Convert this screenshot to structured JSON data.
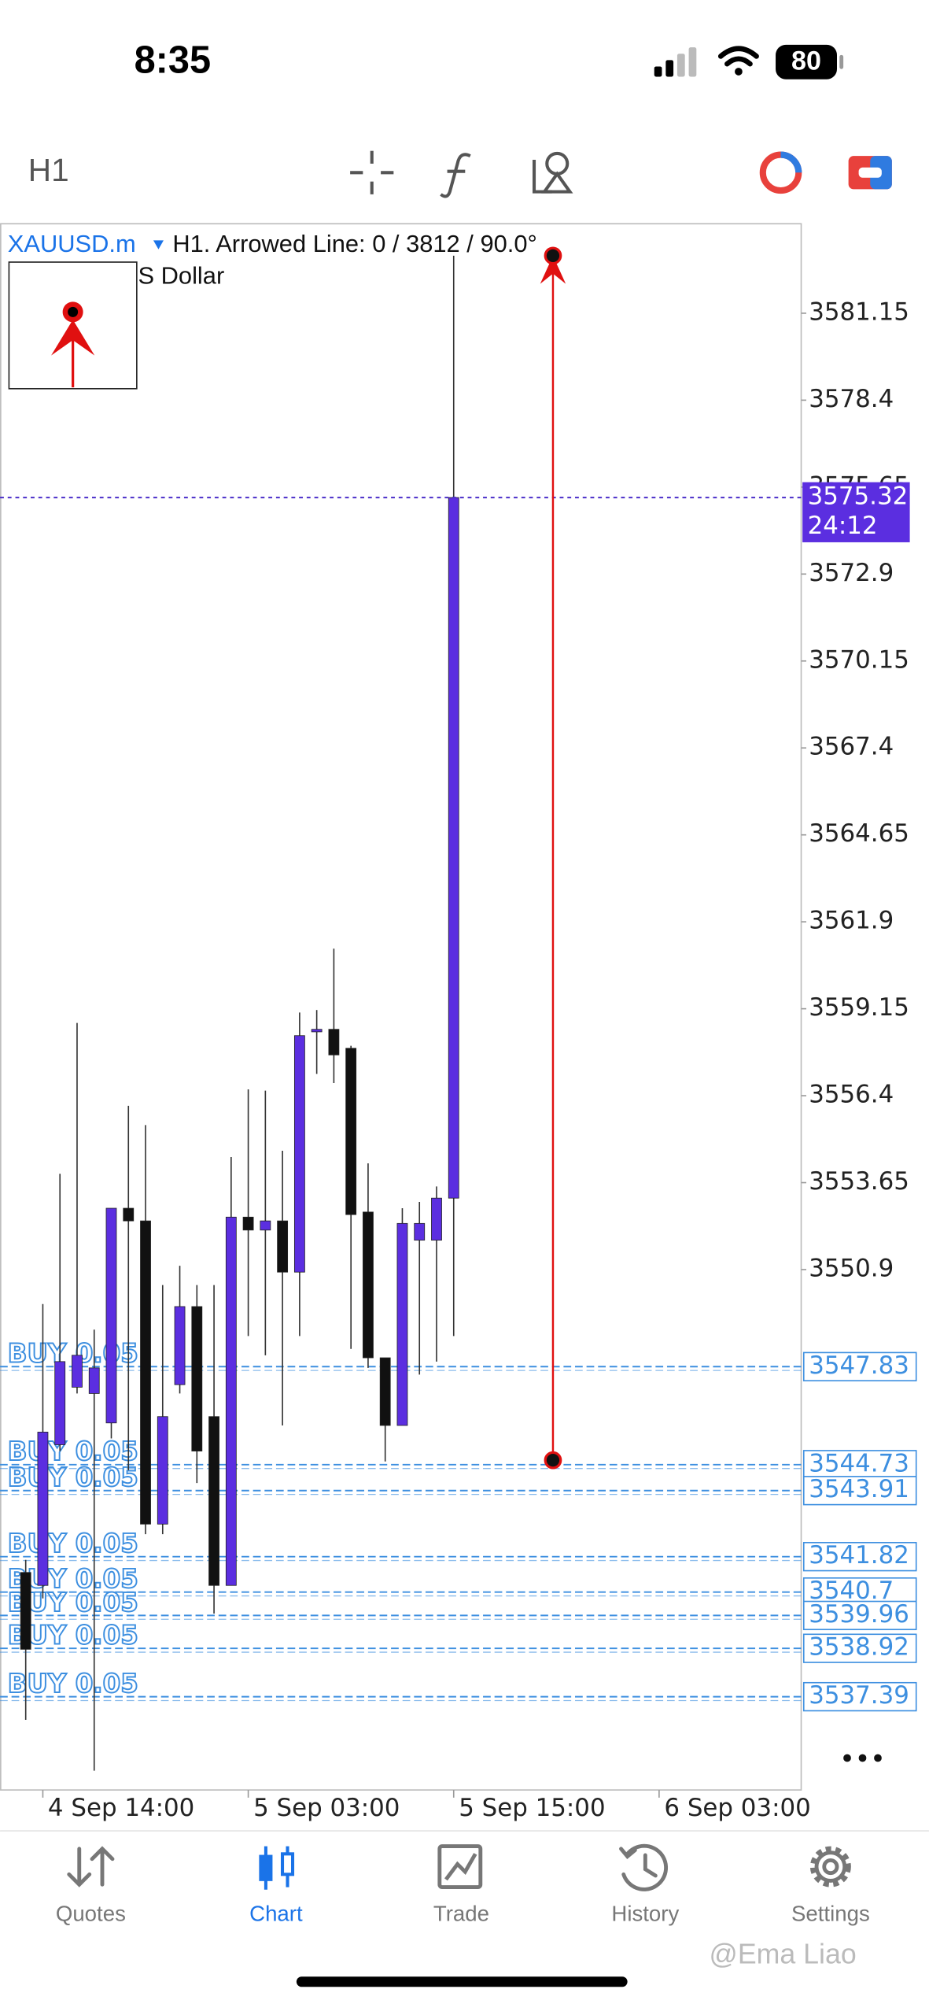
{
  "status_bar": {
    "time": "8:35",
    "battery": "80"
  },
  "toolbar": {
    "timeframe": "H1"
  },
  "chart_data": {
    "type": "candlestick",
    "symbol": "XAUUSD.m",
    "info": "H1. Arrowed Line: 0 / 3812 / 90.0°",
    "subtitle": "S Dollar",
    "open": [
      3541.32,
      3540.91,
      3545.36,
      3547.18,
      3546.98,
      3546.05,
      3552.84,
      3552.44,
      3542.85,
      3547.26,
      3549.73,
      3546.25,
      3540.91,
      3552.56,
      3552.15,
      3552.44,
      3550.82,
      3558.42,
      3558.5,
      3557.9,
      3552.72,
      3548.11,
      3545.97,
      3551.83,
      3551.83,
      3553.16
    ],
    "high": [
      3541.72,
      3549.81,
      3553.93,
      3558.7,
      3549.0,
      3552.84,
      3556.08,
      3555.47,
      3550.41,
      3551.02,
      3550.41,
      3550.41,
      3554.46,
      3556.6,
      3556.56,
      3554.66,
      3559.03,
      3559.11,
      3561.05,
      3557.98,
      3554.26,
      3548.11,
      3552.84,
      3553.04,
      3553.53,
      3582.97
    ],
    "low": [
      3536.66,
      3540.5,
      3545.16,
      3546.98,
      3535.05,
      3545.56,
      3544.55,
      3542.53,
      3542.53,
      3546.98,
      3544.15,
      3540.02,
      3540.91,
      3548.8,
      3548.19,
      3545.97,
      3548.8,
      3557.09,
      3556.8,
      3548.39,
      3547.79,
      3544.83,
      3545.97,
      3547.58,
      3547.99,
      3548.8
    ],
    "close": [
      3538.89,
      3545.76,
      3547.99,
      3548.19,
      3547.79,
      3552.84,
      3552.44,
      3542.85,
      3546.25,
      3549.73,
      3545.16,
      3540.91,
      3552.56,
      3552.15,
      3552.44,
      3550.82,
      3558.3,
      3558.5,
      3557.69,
      3552.64,
      3548.11,
      3545.97,
      3552.36,
      3552.36,
      3553.16,
      3575.32
    ],
    "up_color": "#5b2ee0",
    "down_color": "#111111",
    "xlim": [
      -1.5,
      45.3
    ],
    "xticks": [
      {
        "value": 1,
        "label": "4 Sep 14:00"
      },
      {
        "value": 13,
        "label": "5 Sep 03:00"
      },
      {
        "value": 25,
        "label": "5 Sep 15:00"
      },
      {
        "value": 37,
        "label": "6 Sep 03:00"
      }
    ],
    "ylim": [
      3534.44,
      3583.98
    ],
    "yticks": [
      3581.15,
      3578.4,
      3575.65,
      3572.9,
      3570.15,
      3567.4,
      3564.65,
      3561.9,
      3559.15,
      3556.4,
      3553.65,
      3550.9
    ],
    "current_price": {
      "value": 3575.32,
      "countdown": "24:12",
      "color": "#5b2ee0"
    },
    "orders": [
      {
        "label": "BUY 0.05",
        "price": 3547.83
      },
      {
        "label": "BUY 0.05",
        "price": 3544.73
      },
      {
        "label": "BUY 0.05",
        "price": 3543.91
      },
      {
        "label": "BUY 0.05",
        "price": 3541.82
      },
      {
        "label": "BUY 0.05",
        "price": 3540.7
      },
      {
        "label": "BUY 0.05",
        "price": 3539.96
      },
      {
        "label": "BUY 0.05",
        "price": 3538.92
      },
      {
        "label": "BUY 0.05",
        "price": 3537.39
      }
    ],
    "order_color": "#3d8fe0",
    "arrowed_line": {
      "x": 30.8,
      "start": 3544.87,
      "end": 3582.97,
      "color": "#e01010"
    }
  },
  "tabs": [
    {
      "label": "Quotes",
      "active": false
    },
    {
      "label": "Chart",
      "active": true
    },
    {
      "label": "Trade",
      "active": false
    },
    {
      "label": "History",
      "active": false
    },
    {
      "label": "Settings",
      "active": false
    }
  ],
  "watermark": "@Ema Liao"
}
